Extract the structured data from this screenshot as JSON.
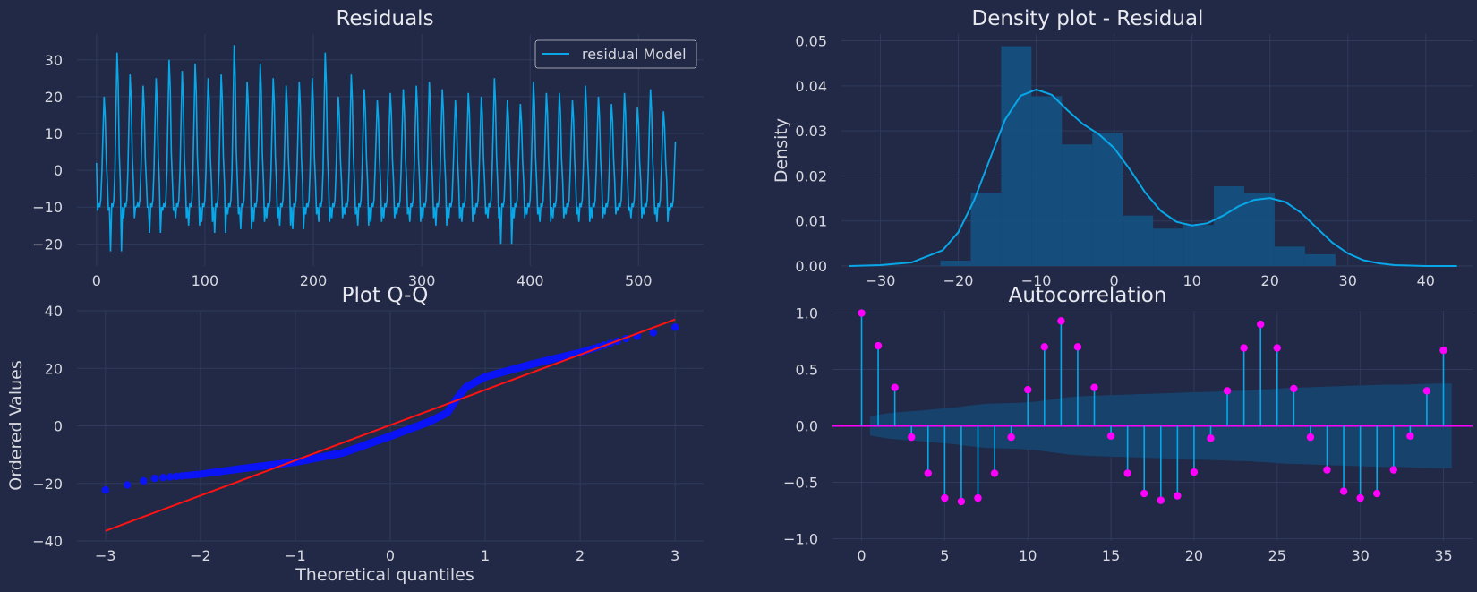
{
  "colors": {
    "background": "#212946",
    "grid": "#2f3a5c",
    "primary": "#08a7e8",
    "qq_points": "#0a14f5",
    "qq_line": "#ff1212",
    "acf_markers": "#fe00fe",
    "band": "#17436f",
    "hist": "#15507f"
  },
  "chart_data": [
    {
      "id": "residuals",
      "type": "line",
      "title": "Residuals",
      "xlabel": "",
      "ylabel": "",
      "xlim": [
        -18,
        560
      ],
      "ylim": [
        -26,
        37
      ],
      "xticks": [
        0,
        100,
        200,
        300,
        400,
        500
      ],
      "yticks": [
        -20,
        -10,
        0,
        10,
        20,
        30
      ],
      "grid": true,
      "legend": {
        "placement": "top-right",
        "entries": [
          "residual Model"
        ]
      },
      "series": [
        {
          "name": "residual Model",
          "generator": "periodic",
          "n": 535,
          "period": 12,
          "pattern": [
            -10,
            -12,
            -9,
            -10,
            -8,
            0,
            14,
            27,
            20,
            4,
            -3,
            -11
          ],
          "peaks_by_cycle": [
            20,
            32,
            26,
            23,
            25,
            30,
            27,
            29,
            25,
            26,
            34,
            24,
            29,
            25,
            23,
            24,
            25,
            32,
            20,
            26,
            22,
            19,
            21,
            22,
            23,
            24,
            22,
            19,
            21,
            20,
            25,
            19,
            18,
            24,
            21,
            21,
            19,
            23,
            20,
            18,
            21,
            17,
            22,
            16,
            15,
            20,
            14
          ],
          "troughs_by_cycle": [
            -11,
            -22,
            -13,
            -10,
            -17,
            -11,
            -13,
            -15,
            -14,
            -17,
            -12,
            -16,
            -14,
            -13,
            -15,
            -16,
            -12,
            -14,
            -13,
            -12,
            -15,
            -14,
            -13,
            -12,
            -14,
            -13,
            -15,
            -13,
            -14,
            -12,
            -13,
            -20,
            -13,
            -12,
            -14,
            -13,
            -12,
            -14,
            -13,
            -12,
            -11,
            -13,
            -12,
            -14,
            -11,
            -12,
            -11
          ]
        }
      ]
    },
    {
      "id": "density",
      "type": "bar",
      "title": "Density plot - Residual",
      "xlabel": "",
      "ylabel": "Density",
      "xlim": [
        -35,
        46
      ],
      "ylim": [
        0,
        0.0515
      ],
      "xticks": [
        -30,
        -20,
        -10,
        0,
        10,
        20,
        30,
        40
      ],
      "yticks": [
        0.0,
        0.01,
        0.02,
        0.03,
        0.04,
        0.05
      ],
      "ytick_labels": [
        "0.00",
        "0.01",
        "0.02",
        "0.03",
        "0.04",
        "0.05"
      ],
      "grid": true,
      "histogram": {
        "bin_edges": [
          -22.3,
          -18.4,
          -14.5,
          -10.6,
          -6.7,
          -2.8,
          1.1,
          5.0,
          8.9,
          12.8,
          16.7,
          20.6,
          24.5,
          28.4,
          32.3
        ],
        "density": [
          0.0012,
          0.0163,
          0.0488,
          0.0377,
          0.027,
          0.0295,
          0.0112,
          0.0083,
          0.0091,
          0.0177,
          0.0161,
          0.0043,
          0.0026,
          0.0
        ]
      },
      "kde": {
        "x": [
          -34,
          -30,
          -26,
          -22,
          -20,
          -18,
          -16,
          -14,
          -12,
          -10,
          -8,
          -6,
          -4,
          -2,
          0,
          2,
          4,
          6,
          8,
          10,
          12,
          14,
          16,
          18,
          20,
          22,
          24,
          26,
          28,
          30,
          32,
          34,
          36,
          38,
          40,
          42,
          44
        ],
        "y": [
          0.0,
          0.0002,
          0.0008,
          0.0035,
          0.0075,
          0.0145,
          0.0235,
          0.0325,
          0.0378,
          0.0392,
          0.038,
          0.0346,
          0.0315,
          0.0293,
          0.0262,
          0.0215,
          0.0163,
          0.0122,
          0.0098,
          0.009,
          0.0095,
          0.0112,
          0.0133,
          0.0147,
          0.0151,
          0.0142,
          0.0118,
          0.0085,
          0.0052,
          0.0028,
          0.0013,
          0.0006,
          0.0002,
          0.0001,
          0.0,
          0.0,
          0.0
        ]
      }
    },
    {
      "id": "qq",
      "type": "scatter",
      "title": "Plot Q-Q",
      "xlabel": "Theoretical quantiles",
      "ylabel": "Ordered Values",
      "xlim": [
        -3.3,
        3.3
      ],
      "ylim": [
        -40,
        40
      ],
      "xticks": [
        -3,
        -2,
        -1,
        0,
        1,
        2,
        3
      ],
      "yticks": [
        -40,
        -20,
        0,
        20,
        40
      ],
      "grid": true,
      "points": {
        "generator": "quantiles",
        "n": 535,
        "q_min": -3.0,
        "q_max": 3.0,
        "value_knots": [
          [
            -3.0,
            -22.3
          ],
          [
            -2.7,
            -20.0
          ],
          [
            -2.5,
            -18.3
          ],
          [
            -2.0,
            -16.8
          ],
          [
            -1.5,
            -14.6
          ],
          [
            -1.0,
            -12.6
          ],
          [
            -0.5,
            -9.4
          ],
          [
            0.0,
            -3.6
          ],
          [
            0.4,
            1.3
          ],
          [
            0.6,
            4.5
          ],
          [
            0.7,
            9.5
          ],
          [
            0.8,
            13.5
          ],
          [
            1.0,
            17.0
          ],
          [
            1.5,
            21.5
          ],
          [
            2.0,
            25.5
          ],
          [
            2.5,
            30.5
          ],
          [
            2.7,
            31.8
          ],
          [
            3.0,
            34.3
          ]
        ]
      },
      "fit_line": {
        "x": [
          -3.0,
          3.0
        ],
        "y": [
          -36.5,
          37.0
        ]
      }
    },
    {
      "id": "acf",
      "type": "bar",
      "title": "Autocorrelation",
      "xlabel": "",
      "ylabel": "",
      "xlim": [
        -1.75,
        36.75
      ],
      "ylim": [
        -1.02,
        1.02
      ],
      "xticks": [
        0,
        5,
        10,
        15,
        20,
        25,
        30,
        35
      ],
      "yticks": [
        -1.0,
        -0.5,
        0.0,
        0.5,
        1.0
      ],
      "ytick_labels": [
        "−1.0",
        "−0.5",
        "0.0",
        "0.5",
        "1.0"
      ],
      "grid": true,
      "lags": [
        0,
        1,
        2,
        3,
        4,
        5,
        6,
        7,
        8,
        9,
        10,
        11,
        12,
        13,
        14,
        15,
        16,
        17,
        18,
        19,
        20,
        21,
        22,
        23,
        24,
        25,
        26,
        27,
        28,
        29,
        30,
        31,
        32,
        33,
        34,
        35
      ],
      "values": [
        1.0,
        0.71,
        0.34,
        -0.1,
        -0.42,
        -0.64,
        -0.67,
        -0.64,
        -0.42,
        -0.1,
        0.32,
        0.7,
        0.93,
        0.7,
        0.34,
        -0.09,
        -0.42,
        -0.6,
        -0.66,
        -0.62,
        -0.41,
        -0.11,
        0.31,
        0.69,
        0.9,
        0.69,
        0.33,
        -0.1,
        -0.39,
        -0.58,
        -0.64,
        -0.6,
        -0.39,
        -0.09,
        0.31,
        0.67
      ],
      "confidence_band": [
        0.0,
        0.085,
        0.11,
        0.125,
        0.135,
        0.15,
        0.16,
        0.18,
        0.195,
        0.2,
        0.205,
        0.215,
        0.235,
        0.255,
        0.265,
        0.27,
        0.275,
        0.28,
        0.285,
        0.29,
        0.295,
        0.3,
        0.305,
        0.31,
        0.315,
        0.325,
        0.335,
        0.34,
        0.345,
        0.35,
        0.355,
        0.36,
        0.365,
        0.365,
        0.37,
        0.375
      ]
    }
  ]
}
